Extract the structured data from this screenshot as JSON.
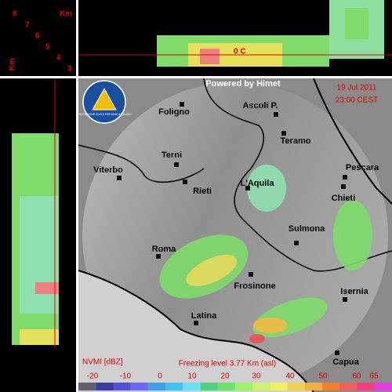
{
  "height_labels": [
    "8",
    "7",
    "6",
    "5",
    "4",
    "3"
  ],
  "unit_left": "Km",
  "unit_right": "Km",
  "freezing_marker": "0 C",
  "credit": "Powered by Himet",
  "date": "19 Jul 2011",
  "time": "23:00 CEST",
  "logo_text": "PROTEZIONE CIVILE REGIONE ABRUZZO",
  "cities": [
    "Foligno",
    "Ascoli P.",
    "Teramo",
    "Terni",
    "Viterbo",
    "Rieti",
    "L'Aquila",
    "Pescara",
    "Chieti",
    "Sulmona",
    "Roma",
    "Frosinone",
    "Isernia",
    "Latina",
    "Capua"
  ],
  "product": "NVMI [dBZ]",
  "freezing_level": "Freezing level  3.77 Km (asl)",
  "scale_labels": [
    "-20",
    "-10",
    "0",
    "10",
    "20",
    "30",
    "40",
    "50",
    "60",
    "65"
  ]
}
